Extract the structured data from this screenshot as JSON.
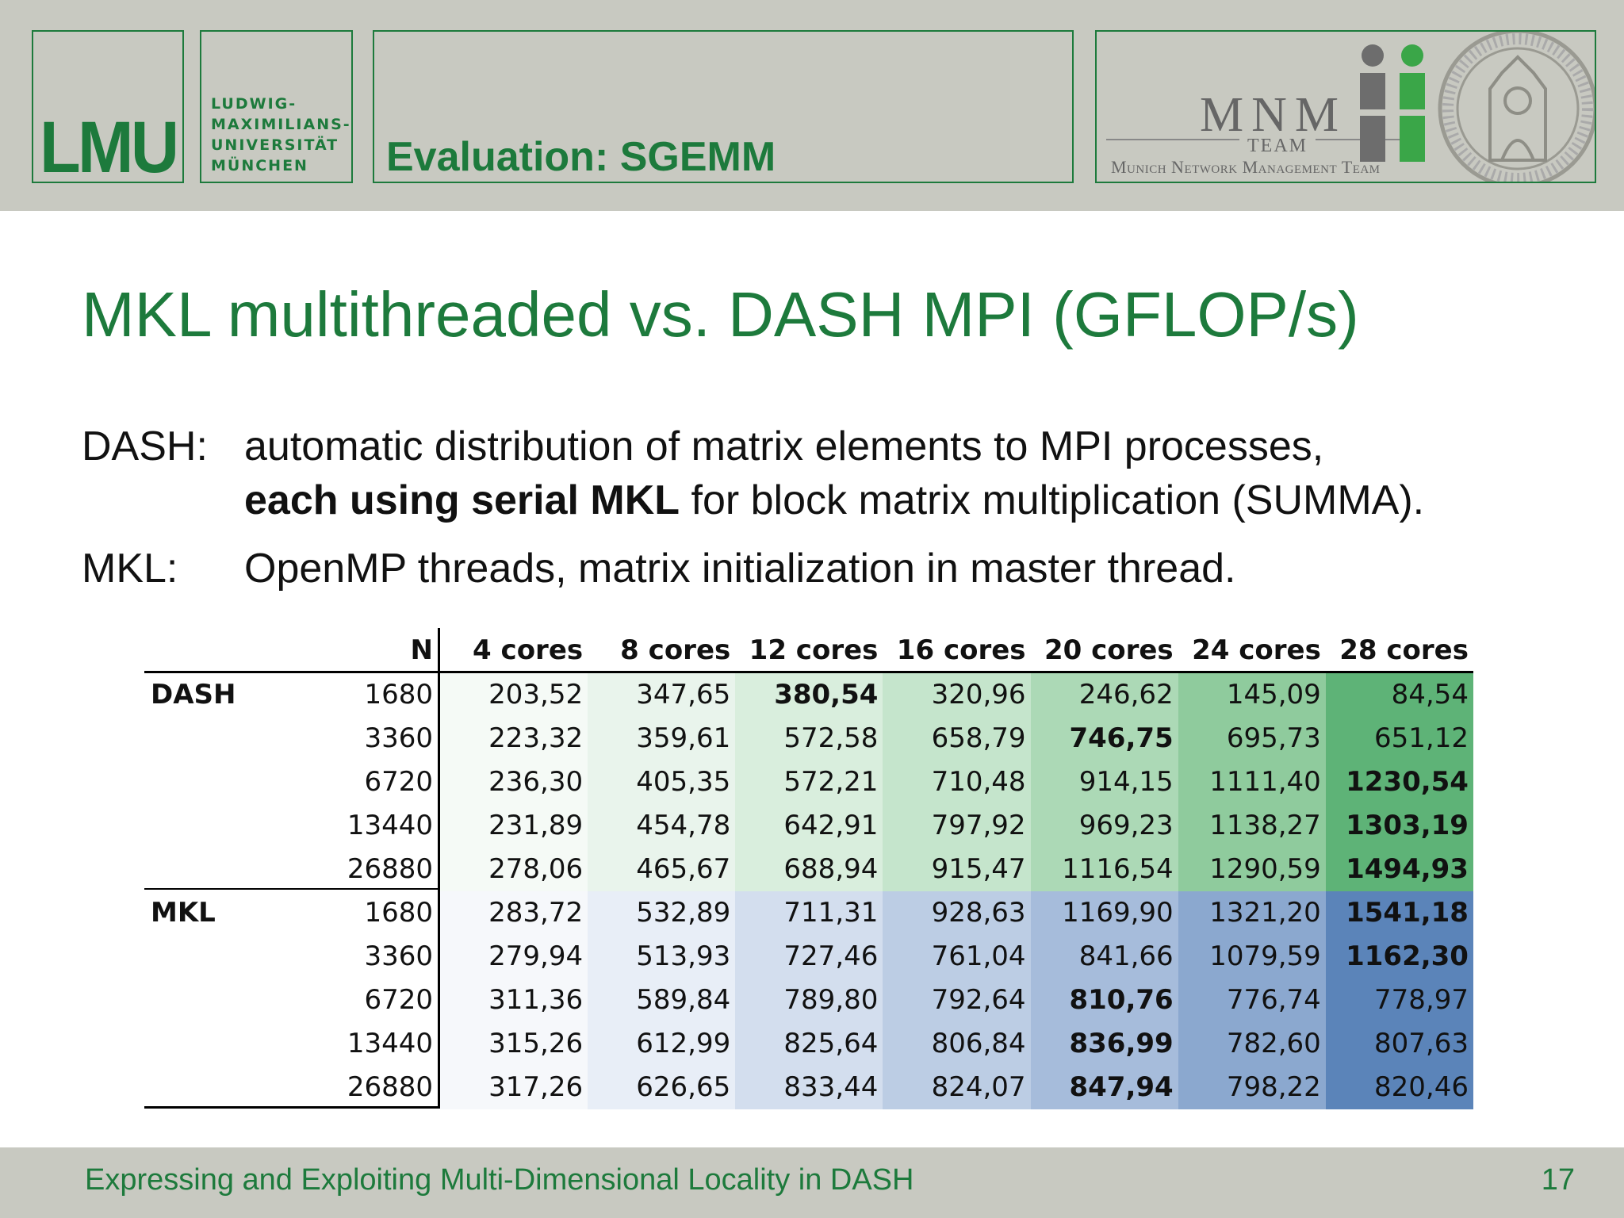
{
  "header": {
    "lmu_logo": "LMU",
    "university_lines": [
      "LUDWIG-",
      "MAXIMILIANS-",
      "UNIVERSITÄT",
      "MÜNCHEN"
    ],
    "section_title": "Evaluation: SGEMM",
    "mnm_logo": "MNM",
    "mnm_team": "TEAM",
    "mnm_subtitle": "Munich Network Management Team"
  },
  "slide": {
    "title": "MKL multithreaded vs. DASH MPI (GFLOP/s)",
    "dash_label": "DASH:",
    "dash_line1": "automatic distribution of matrix elements to MPI processes,",
    "dash_line2_bold": "each using serial MKL",
    "dash_line2_rest": " for block matrix multiplication (SUMMA).",
    "mkl_label": "MKL:",
    "mkl_line": "OpenMP threads, matrix initialization in master thread."
  },
  "table": {
    "n_header": "N",
    "columns": [
      "4 cores",
      "8 cores",
      "12 cores",
      "16 cores",
      "20 cores",
      "24 cores",
      "28 cores"
    ],
    "groups": [
      {
        "name": "DASH",
        "rows": [
          {
            "n": "1680",
            "values": [
              "203,52",
              "347,65",
              "380,54",
              "320,96",
              "246,62",
              "145,09",
              "84,54"
            ],
            "bold": [
              2
            ]
          },
          {
            "n": "3360",
            "values": [
              "223,32",
              "359,61",
              "572,58",
              "658,79",
              "746,75",
              "695,73",
              "651,12"
            ],
            "bold": [
              4
            ]
          },
          {
            "n": "6720",
            "values": [
              "236,30",
              "405,35",
              "572,21",
              "710,48",
              "914,15",
              "1111,40",
              "1230,54"
            ],
            "bold": [
              6
            ]
          },
          {
            "n": "13440",
            "values": [
              "231,89",
              "454,78",
              "642,91",
              "797,92",
              "969,23",
              "1138,27",
              "1303,19"
            ],
            "bold": [
              6
            ]
          },
          {
            "n": "26880",
            "values": [
              "278,06",
              "465,67",
              "688,94",
              "915,47",
              "1116,54",
              "1290,59",
              "1494,93"
            ],
            "bold": [
              6
            ]
          }
        ]
      },
      {
        "name": "MKL",
        "rows": [
          {
            "n": "1680",
            "values": [
              "283,72",
              "532,89",
              "711,31",
              "928,63",
              "1169,90",
              "1321,20",
              "1541,18"
            ],
            "bold": [
              6
            ]
          },
          {
            "n": "3360",
            "values": [
              "279,94",
              "513,93",
              "727,46",
              "761,04",
              "841,66",
              "1079,59",
              "1162,30"
            ],
            "bold": [
              6
            ]
          },
          {
            "n": "6720",
            "values": [
              "311,36",
              "589,84",
              "789,80",
              "792,64",
              "810,76",
              "776,74",
              "778,97"
            ],
            "bold": [
              4
            ]
          },
          {
            "n": "13440",
            "values": [
              "315,26",
              "612,99",
              "825,64",
              "806,84",
              "836,99",
              "782,60",
              "807,63"
            ],
            "bold": [
              4
            ]
          },
          {
            "n": "26880",
            "values": [
              "317,26",
              "626,65",
              "833,44",
              "824,07",
              "847,94",
              "798,22",
              "820,46"
            ],
            "bold": [
              4
            ]
          }
        ]
      }
    ],
    "colors": {
      "dash": [
        "#f5faf6",
        "#e9f4ec",
        "#d9eedd",
        "#c5e5cc",
        "#acd9b6",
        "#8fcb9d",
        "#5eb377"
      ],
      "mkl": [
        "#f6f8fb",
        "#e8eef7",
        "#d3deee",
        "#bccde4",
        "#a6bcdb",
        "#8ba8cf",
        "#5b84b9"
      ]
    }
  },
  "footer": {
    "text": "Expressing and Exploiting Multi-Dimensional Locality in DASH",
    "page": "17"
  }
}
